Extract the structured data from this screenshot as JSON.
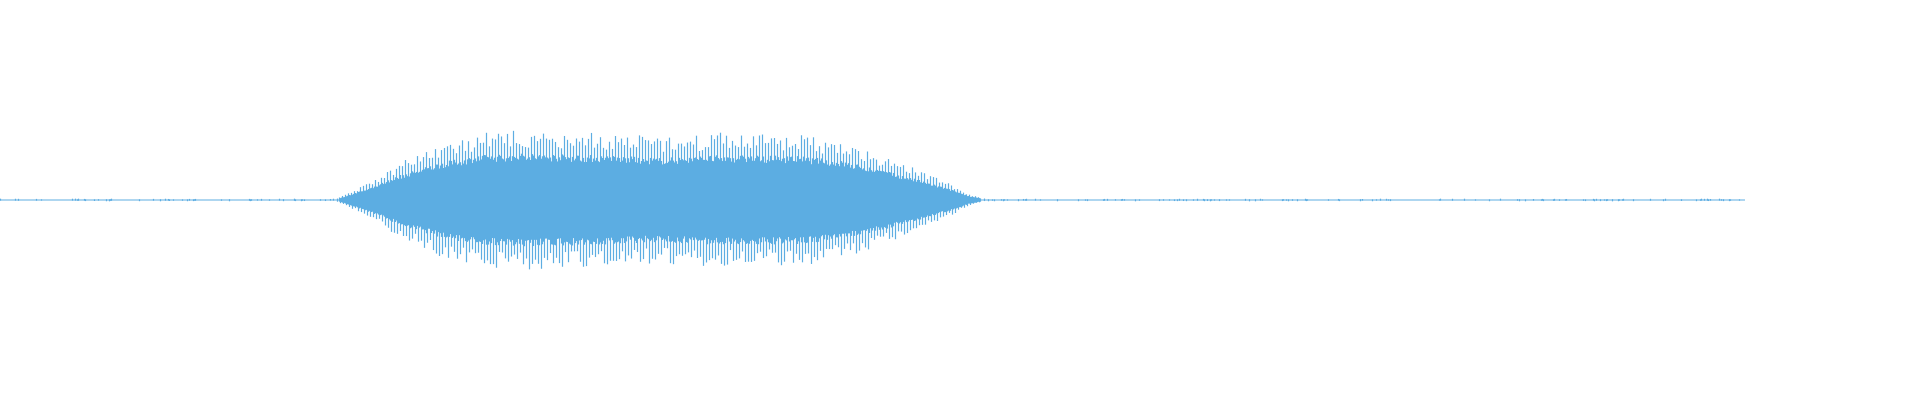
{
  "waveform": {
    "color": "#5dade2",
    "background": "#ffffff"
  }
}
